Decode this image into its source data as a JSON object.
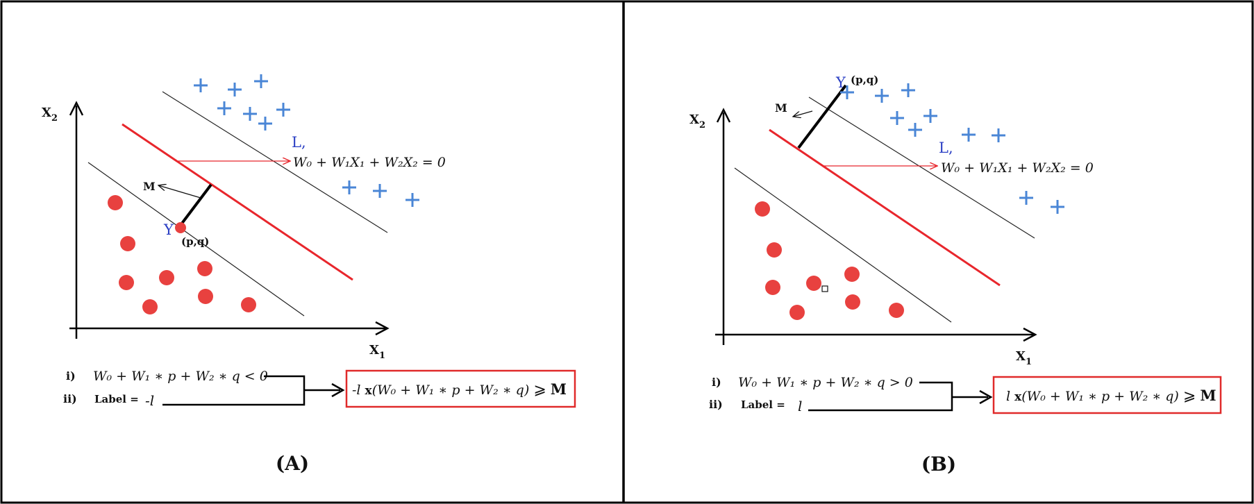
{
  "panels": [
    {
      "id": "A",
      "caption": "(A)",
      "axis_x": "X",
      "axis_x_sub": "1",
      "axis_y": "X",
      "axis_y_sub": "2",
      "line_name": "L,",
      "line_equation": "W₀ + W₁X₁ + W₂X₂ = 0",
      "margin_label": "M",
      "point_symbol": "Y",
      "point_coords": "(p,q)",
      "cond_i_num": "i)",
      "cond_i_text": "W₀ + W₁ ∗ p + W₂ ∗ q < 0",
      "cond_ii_num": "ii)",
      "cond_ii_label": "Label =",
      "cond_ii_value": "-l",
      "result_prefix": "-l",
      "result_x": "x",
      "result_expr": "(W₀ + W₁ ∗ p + W₂ ∗ q)",
      "result_op": "⩾",
      "result_M": "M"
    },
    {
      "id": "B",
      "caption": "(B)",
      "axis_x": "X",
      "axis_x_sub": "1",
      "axis_y": "X",
      "axis_y_sub": "2",
      "line_name": "L,",
      "line_equation": "W₀ + W₁X₁ + W₂X₂ = 0",
      "margin_label": "M",
      "point_symbol": "Y",
      "point_coords": "(p,q)",
      "cond_i_num": "i)",
      "cond_i_text": "W₀ + W₁ ∗ p + W₂ ∗ q > 0",
      "cond_ii_num": "ii)",
      "cond_ii_label": "Label =",
      "cond_ii_value": "l",
      "result_prefix": "l",
      "result_x": "x",
      "result_expr": "(W₀ + W₁ ∗ p + W₂ ∗ q)",
      "result_op": "⩾",
      "result_M": "M"
    }
  ],
  "colors": {
    "separator": "#e8262c",
    "negative_point": "#e8413f",
    "positive_mark": "#4a86d6",
    "label_blue": "#2b3fc4",
    "ink": "#111111",
    "frame": "#000000"
  }
}
